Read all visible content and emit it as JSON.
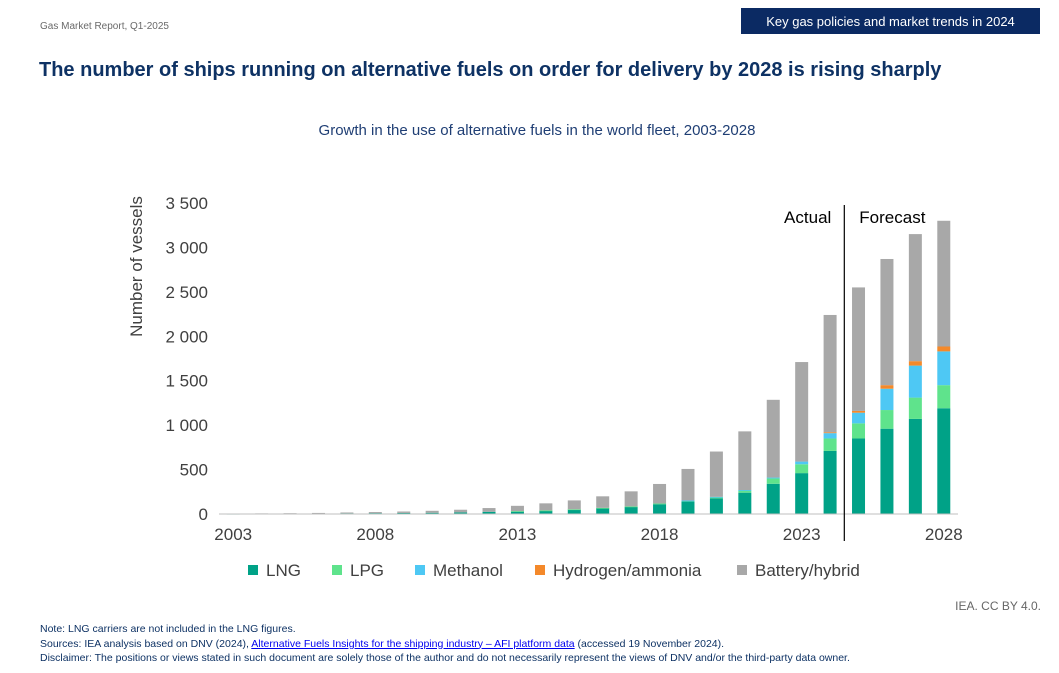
{
  "header": {
    "report_label": "Gas Market Report, Q1-2025",
    "section_tag": "Key gas policies and market trends in 2024"
  },
  "title": "The number of ships running on alternative fuels on order for delivery by 2028 is rising sharply",
  "chart_data": {
    "type": "bar",
    "stacked": true,
    "title": "Growth in the use of alternative fuels in the world fleet, 2003-2028",
    "ylabel": "Number of vessels",
    "ylim": [
      0,
      3500
    ],
    "yticks": [
      0,
      500,
      1000,
      1500,
      2000,
      2500,
      3000,
      3500
    ],
    "ytick_labels": [
      "0",
      "500",
      "1 000",
      "1 500",
      "2 000",
      "2 500",
      "3 000",
      "3 500"
    ],
    "categories": [
      2003,
      2004,
      2005,
      2006,
      2007,
      2008,
      2009,
      2010,
      2011,
      2012,
      2013,
      2014,
      2015,
      2016,
      2017,
      2018,
      2019,
      2020,
      2021,
      2022,
      2023,
      2024,
      2025,
      2026,
      2027,
      2028
    ],
    "xtick_labels": [
      "2003",
      "",
      "",
      "",
      "",
      "2008",
      "",
      "",
      "",
      "",
      "2013",
      "",
      "",
      "",
      "",
      "2018",
      "",
      "",
      "",
      "",
      "2023",
      "",
      "",
      "",
      "",
      "2028"
    ],
    "series": [
      {
        "name": "LNG",
        "color": "#00a287",
        "values": [
          3,
          4,
          5,
          7,
          9,
          10,
          12,
          14,
          18,
          25,
          30,
          38,
          50,
          65,
          80,
          110,
          140,
          175,
          240,
          340,
          460,
          710,
          850,
          960,
          1070,
          1190
        ]
      },
      {
        "name": "LPG",
        "color": "#5fe38c",
        "values": [
          0,
          0,
          0,
          0,
          0,
          0,
          0,
          0,
          0,
          0,
          2,
          2,
          3,
          4,
          5,
          8,
          10,
          15,
          25,
          60,
          100,
          140,
          170,
          210,
          240,
          260
        ]
      },
      {
        "name": "Methanol",
        "color": "#4ec8f4",
        "values": [
          0,
          0,
          0,
          0,
          0,
          0,
          0,
          0,
          0,
          0,
          0,
          0,
          0,
          0,
          0,
          0,
          2,
          3,
          5,
          10,
          30,
          60,
          120,
          240,
          360,
          380
        ]
      },
      {
        "name": "Hydrogen/ammonia",
        "color": "#f4892a",
        "values": [
          0,
          0,
          0,
          0,
          0,
          0,
          0,
          0,
          0,
          0,
          0,
          0,
          0,
          0,
          0,
          0,
          0,
          0,
          0,
          0,
          0,
          10,
          20,
          40,
          50,
          55
        ]
      },
      {
        "name": "Battery/hybrid",
        "color": "#a8a8a8",
        "values": [
          2,
          3,
          4,
          5,
          8,
          12,
          16,
          22,
          30,
          42,
          60,
          80,
          100,
          130,
          170,
          220,
          355,
          510,
          660,
          875,
          1120,
          1320,
          1390,
          1420,
          1430,
          1415
        ]
      }
    ],
    "annotations": {
      "actual": "Actual",
      "forecast": "Forecast"
    },
    "divider_between": [
      2024,
      2025
    ],
    "legend_position": "bottom"
  },
  "credit": "IEA. CC BY 4.0.",
  "notes": {
    "note": "Note: LNG carriers are not included in the LNG figures.",
    "sources_prefix": "Sources: IEA analysis based on DNV (2024), ",
    "sources_link": "Alternative Fuels Insights for the shipping industry – AFI platform data",
    "sources_suffix": " (accessed 19 November 2024).",
    "disclaimer": "Disclaimer: The positions or views stated in such document are solely those of the author and do not necessarily represent the views of DNV and/or the third-party data owner."
  }
}
